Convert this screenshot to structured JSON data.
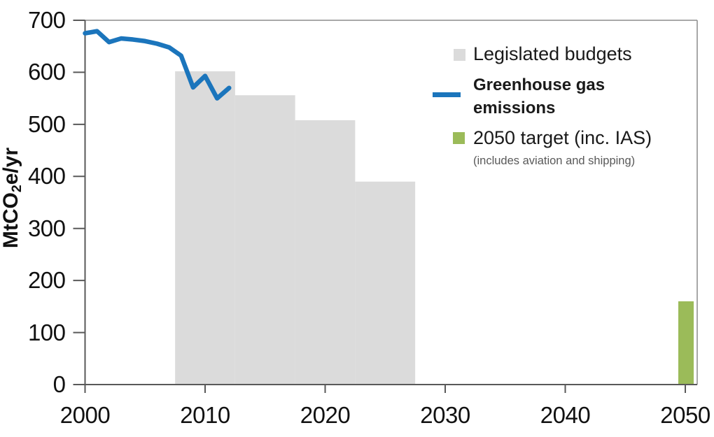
{
  "chart_data": {
    "type": "combo",
    "title": "",
    "xlabel": "",
    "ylabel": "MtCO2e/yr",
    "ylabel_parts": {
      "prefix": "MtCO",
      "sub": "2",
      "suffix": "e/yr"
    },
    "ylim": [
      0,
      700
    ],
    "xlim": [
      2000,
      2051
    ],
    "y_ticks": [
      700,
      600,
      500,
      400,
      300,
      200,
      100,
      0
    ],
    "x_ticks": [
      2000,
      2010,
      2020,
      2030,
      2040,
      2050
    ],
    "grid": false,
    "legend_position": "upper right",
    "note": "(includes aviation and shipping)",
    "series": [
      {
        "name": "Legislated budgets",
        "type": "step-area",
        "color": "#DBDBDB",
        "periods": [
          {
            "start": 2008,
            "end": 2012,
            "value": 602
          },
          {
            "start": 2013,
            "end": 2017,
            "value": 556
          },
          {
            "start": 2018,
            "end": 2022,
            "value": 508
          },
          {
            "start": 2023,
            "end": 2027,
            "value": 390
          }
        ]
      },
      {
        "name": "Greenhouse gas emissions",
        "type": "line",
        "color": "#1B75BC",
        "x": [
          2000,
          2001,
          2002,
          2003,
          2004,
          2005,
          2006,
          2007,
          2008,
          2009,
          2010,
          2011,
          2012
        ],
        "y": [
          675,
          679,
          658,
          665,
          663,
          660,
          655,
          648,
          632,
          571,
          593,
          550,
          570
        ]
      },
      {
        "name": "2050 target (inc. IAS)",
        "type": "bar",
        "color": "#9BBB59",
        "x": [
          2050
        ],
        "y": [
          160
        ]
      }
    ],
    "axis_color": "#595959",
    "border_color": "#8C8C8C"
  }
}
